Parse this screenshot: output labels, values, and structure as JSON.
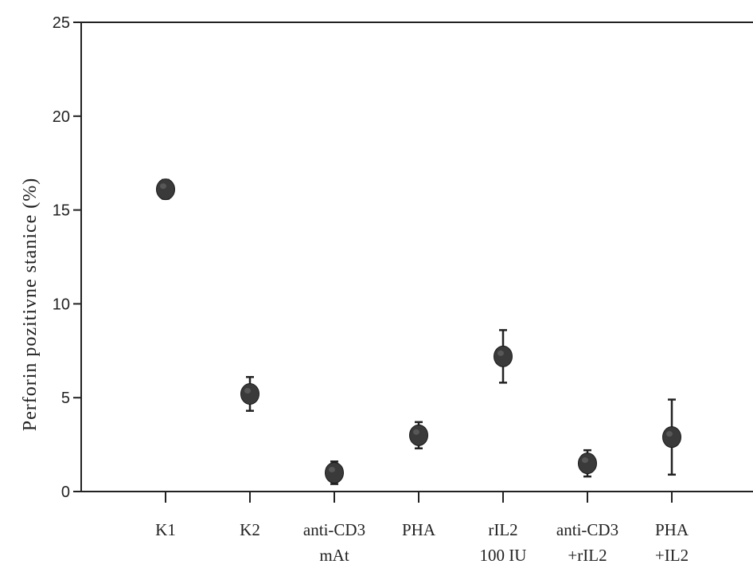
{
  "chart_data": {
    "type": "scatter",
    "ylabel": "Perforin pozitivne stanice (%)",
    "xlabel": "",
    "ylim": [
      0,
      25
    ],
    "yticks": [
      0,
      5,
      10,
      15,
      20,
      25
    ],
    "ytick_labels": [
      "0",
      "5",
      "10",
      "15",
      "20",
      "25"
    ],
    "categories": [
      [
        "K1"
      ],
      [
        "K2"
      ],
      [
        "anti-CD3",
        "mAt"
      ],
      [
        "PHA"
      ],
      [
        "rIL2",
        "100  IU"
      ],
      [
        "anti-CD3",
        "+rIL2"
      ],
      [
        "PHA",
        "+IL2"
      ]
    ],
    "values": [
      16.1,
      5.2,
      1.0,
      3.0,
      7.2,
      1.5,
      2.9
    ],
    "errors": [
      0.5,
      0.9,
      0.6,
      0.7,
      1.4,
      0.7,
      2.0
    ],
    "grid": false,
    "colors": {
      "marker": "#3a3a3a",
      "axis": "#222222"
    }
  }
}
